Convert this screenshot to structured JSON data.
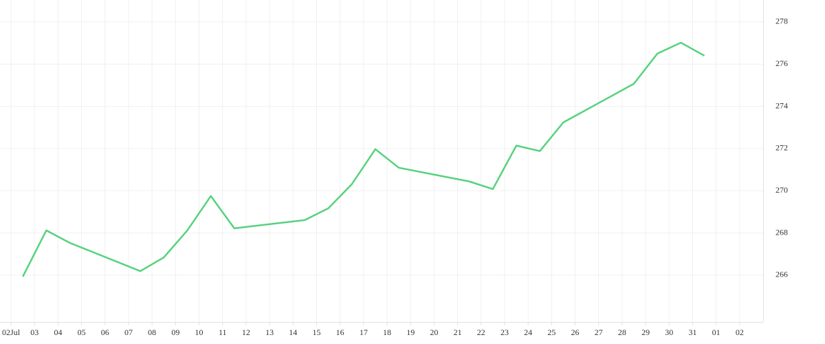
{
  "chart_data": {
    "type": "line",
    "x": [
      0.5,
      1.5,
      2.5,
      5.5,
      6.5,
      7.5,
      8.5,
      9.5,
      12.5,
      13.5,
      14.5,
      15.5,
      16.5,
      19.5,
      20.5,
      21.5,
      22.5,
      23.5,
      26.5,
      27.5,
      28.5,
      29.5
    ],
    "series": [
      {
        "color": "#55d27d",
        "values": [
          265.93,
          268.12,
          267.53,
          266.19,
          266.84,
          268.12,
          269.75,
          268.22,
          268.61,
          269.17,
          270.31,
          271.97,
          271.09,
          270.44,
          270.08,
          272.14,
          271.88,
          273.24,
          275.07,
          276.5,
          277.02,
          276.4
        ]
      }
    ],
    "xlim": [
      -0.47,
      32
    ],
    "xticks": [
      {
        "value": 0,
        "label": "02Jul"
      },
      {
        "value": 1,
        "label": "03"
      },
      {
        "value": 2,
        "label": "04"
      },
      {
        "value": 3,
        "label": "05"
      },
      {
        "value": 4,
        "label": "06"
      },
      {
        "value": 5,
        "label": "07"
      },
      {
        "value": 6,
        "label": "08"
      },
      {
        "value": 7,
        "label": "09"
      },
      {
        "value": 8,
        "label": "10"
      },
      {
        "value": 9,
        "label": "11"
      },
      {
        "value": 10,
        "label": "12"
      },
      {
        "value": 11,
        "label": "13"
      },
      {
        "value": 12,
        "label": "14"
      },
      {
        "value": 13,
        "label": "15"
      },
      {
        "value": 14,
        "label": "16"
      },
      {
        "value": 15,
        "label": "17"
      },
      {
        "value": 16,
        "label": "18"
      },
      {
        "value": 17,
        "label": "19"
      },
      {
        "value": 18,
        "label": "20"
      },
      {
        "value": 19,
        "label": "21"
      },
      {
        "value": 20,
        "label": "22"
      },
      {
        "value": 21,
        "label": "23"
      },
      {
        "value": 22,
        "label": "24"
      },
      {
        "value": 23,
        "label": "25"
      },
      {
        "value": 24,
        "label": "26"
      },
      {
        "value": 25,
        "label": "27"
      },
      {
        "value": 26,
        "label": "28"
      },
      {
        "value": 27,
        "label": "29"
      },
      {
        "value": 28,
        "label": "30"
      },
      {
        "value": 29,
        "label": "31"
      },
      {
        "value": 30,
        "label": "01"
      },
      {
        "value": 31,
        "label": "02"
      }
    ],
    "ylim": [
      263.78,
      279.04
    ],
    "yticks": [
      266,
      268,
      270,
      272,
      274,
      276,
      278
    ],
    "grid": true
  }
}
